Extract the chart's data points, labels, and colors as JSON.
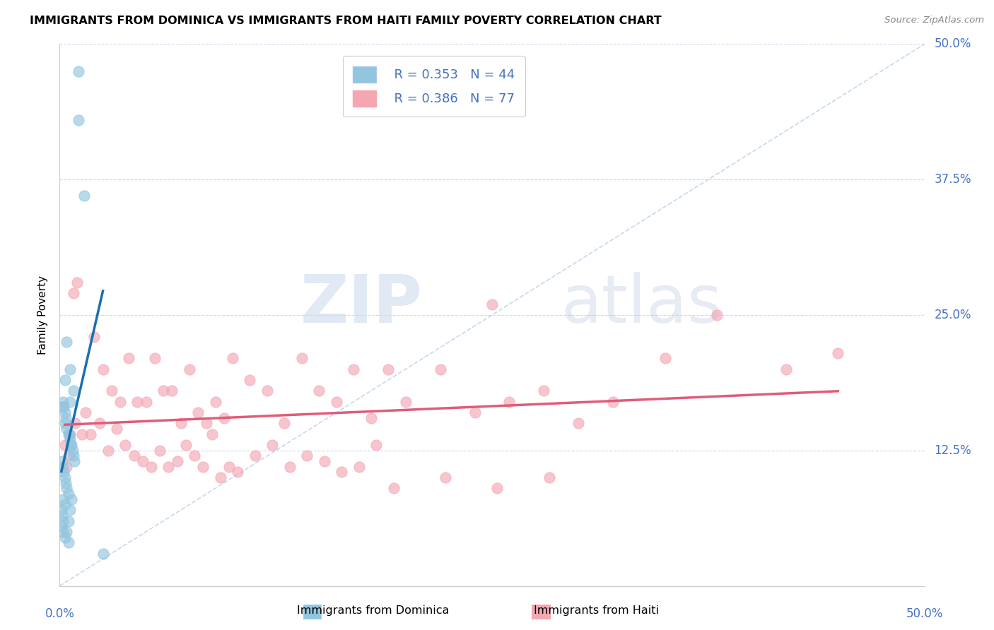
{
  "title": "IMMIGRANTS FROM DOMINICA VS IMMIGRANTS FROM HAITI FAMILY POVERTY CORRELATION CHART",
  "source": "Source: ZipAtlas.com",
  "ylabel": "Family Poverty",
  "legend_label1": "Immigrants from Dominica",
  "legend_label2": "Immigrants from Haiti",
  "legend_R1": "R = 0.353",
  "legend_N1": "N = 44",
  "legend_R2": "R = 0.386",
  "legend_N2": "N = 77",
  "color_dominica": "#92c5de",
  "color_haiti": "#f4a7b2",
  "color_dominica_line": "#1a6faf",
  "color_haiti_line": "#e05c7a",
  "color_diag": "#b8cfe8",
  "watermark_zip": "ZIP",
  "watermark_atlas": "atlas",
  "xlim": [
    0,
    50
  ],
  "ylim": [
    0,
    50
  ],
  "ytick_vals": [
    12.5,
    25.0,
    37.5,
    50.0
  ],
  "dominica_x": [
    1.1,
    1.1,
    1.4,
    0.4,
    0.8,
    0.6,
    0.3,
    0.2,
    0.15,
    0.25,
    0.3,
    0.35,
    0.3,
    0.4,
    0.5,
    0.55,
    0.6,
    0.65,
    0.7,
    0.75,
    0.8,
    0.85,
    0.15,
    0.2,
    0.25,
    0.3,
    0.35,
    0.4,
    0.5,
    0.2,
    0.3,
    0.1,
    0.15,
    0.2,
    0.1,
    0.2,
    0.3,
    0.4,
    0.5,
    0.6,
    0.7,
    0.5,
    2.5,
    0.6
  ],
  "dominica_y": [
    47.5,
    43,
    36,
    22.5,
    18,
    20,
    19,
    17,
    16.5,
    16.5,
    16,
    15.5,
    15,
    14.5,
    14,
    14,
    13.5,
    13,
    13,
    12.5,
    12,
    11.5,
    11.5,
    11,
    10.5,
    10,
    9.5,
    9,
    8.5,
    8,
    7.5,
    7,
    6.5,
    6,
    5.5,
    5,
    4.5,
    5,
    6,
    7,
    8,
    4,
    3,
    17
  ],
  "haiti_x": [
    0.4,
    0.6,
    0.8,
    1.0,
    1.5,
    2.0,
    2.5,
    3.0,
    3.5,
    4.0,
    4.5,
    5.0,
    5.5,
    6.0,
    6.5,
    7.0,
    7.5,
    8.0,
    8.5,
    9.0,
    9.5,
    10.0,
    11.0,
    12.0,
    13.0,
    14.0,
    15.0,
    16.0,
    17.0,
    18.0,
    19.0,
    20.0,
    22.0,
    24.0,
    25.0,
    26.0,
    28.0,
    30.0,
    32.0,
    35.0,
    38.0,
    42.0,
    45.0,
    0.3,
    0.5,
    0.9,
    1.3,
    1.8,
    2.3,
    2.8,
    3.3,
    3.8,
    4.3,
    4.8,
    5.3,
    5.8,
    6.3,
    6.8,
    7.3,
    7.8,
    8.3,
    8.8,
    9.3,
    9.8,
    10.3,
    11.3,
    12.3,
    13.3,
    14.3,
    15.3,
    16.3,
    17.3,
    18.3,
    19.3,
    22.3,
    25.3,
    28.3
  ],
  "haiti_y": [
    11,
    14,
    27,
    28,
    16,
    23,
    20,
    18,
    17,
    21,
    17,
    17,
    21,
    18,
    18,
    15,
    20,
    16,
    15,
    17,
    15.5,
    21,
    19,
    18,
    15,
    21,
    18,
    17,
    20,
    15.5,
    20,
    17,
    20,
    16,
    26,
    17,
    18,
    15,
    17,
    21,
    25,
    20,
    21.5,
    13,
    12,
    15,
    14,
    14,
    15,
    12.5,
    14.5,
    13,
    12,
    11.5,
    11,
    12.5,
    11,
    11.5,
    13,
    12,
    11,
    14,
    10,
    11,
    10.5,
    12,
    13,
    11,
    12,
    11.5,
    10.5,
    11,
    13,
    9,
    10,
    9,
    10
  ]
}
